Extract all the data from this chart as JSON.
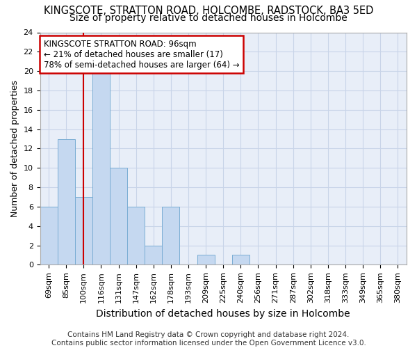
{
  "title": "KINGSCOTE, STRATTON ROAD, HOLCOMBE, RADSTOCK, BA3 5ED",
  "subtitle": "Size of property relative to detached houses in Holcombe",
  "xlabel": "Distribution of detached houses by size in Holcombe",
  "ylabel": "Number of detached properties",
  "categories": [
    "69sqm",
    "85sqm",
    "100sqm",
    "116sqm",
    "131sqm",
    "147sqm",
    "162sqm",
    "178sqm",
    "193sqm",
    "209sqm",
    "225sqm",
    "240sqm",
    "256sqm",
    "271sqm",
    "287sqm",
    "302sqm",
    "318sqm",
    "333sqm",
    "349sqm",
    "365sqm",
    "380sqm"
  ],
  "values": [
    6,
    13,
    7,
    20,
    10,
    6,
    2,
    6,
    0,
    1,
    0,
    1,
    0,
    0,
    0,
    0,
    0,
    0,
    0,
    0,
    0
  ],
  "bar_color": "#c5d8f0",
  "bar_edge_color": "#7aadd4",
  "vline_x": 2.0,
  "annotation_line1": "KINGSCOTE STRATTON ROAD: 96sqm",
  "annotation_line2": "← 21% of detached houses are smaller (17)",
  "annotation_line3": "78% of semi-detached houses are larger (64) →",
  "annotation_box_color": "#ffffff",
  "annotation_box_edge_color": "#cc0000",
  "vline_color": "#cc0000",
  "ylim": [
    0,
    24
  ],
  "yticks": [
    0,
    2,
    4,
    6,
    8,
    10,
    12,
    14,
    16,
    18,
    20,
    22,
    24
  ],
  "grid_color": "#c8d4e8",
  "bg_color": "#e8eef8",
  "footer": "Contains HM Land Registry data © Crown copyright and database right 2024.\nContains public sector information licensed under the Open Government Licence v3.0.",
  "title_fontsize": 10.5,
  "subtitle_fontsize": 10,
  "xlabel_fontsize": 10,
  "ylabel_fontsize": 9,
  "tick_fontsize": 8,
  "annot_fontsize": 8.5,
  "footer_fontsize": 7.5
}
